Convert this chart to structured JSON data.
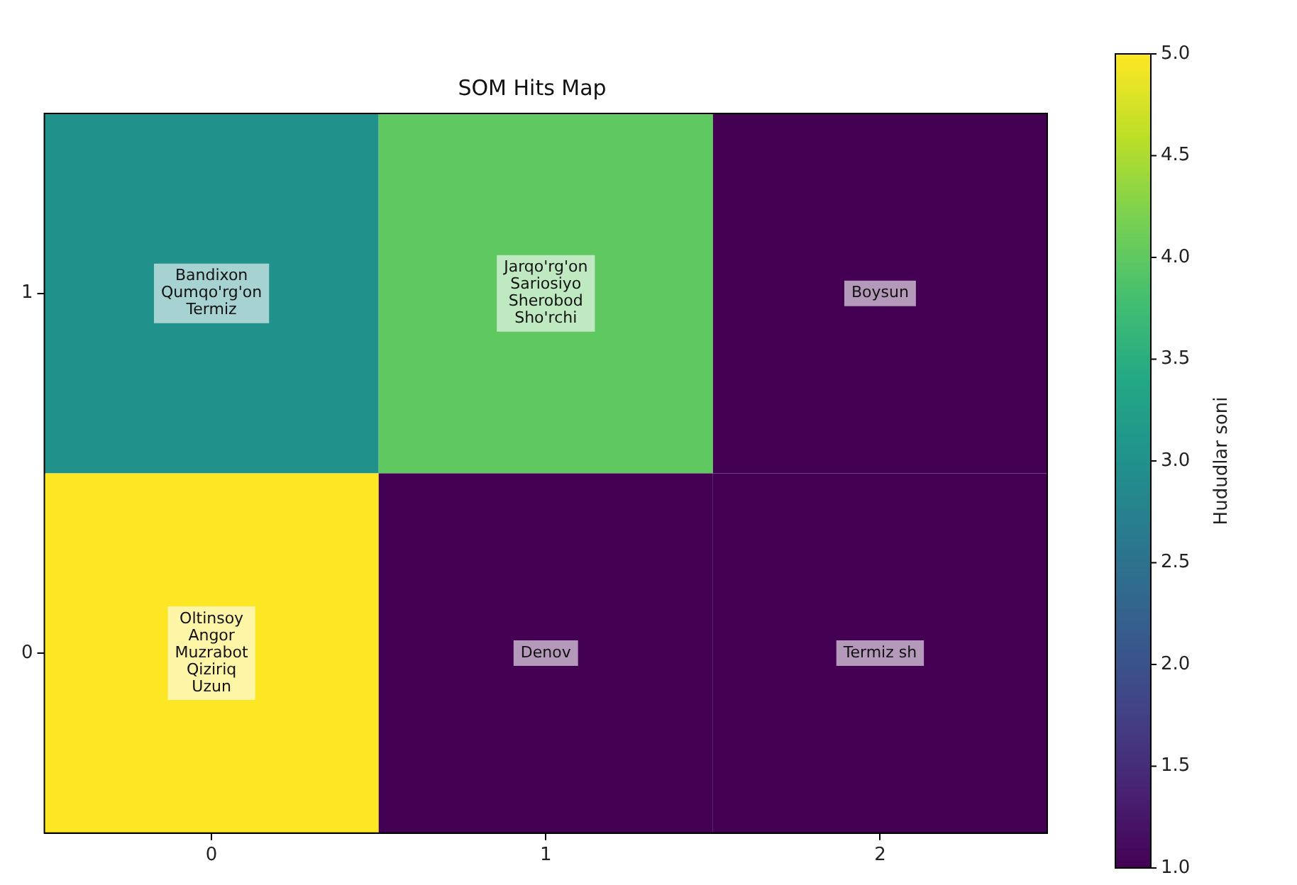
{
  "chart_data": {
    "type": "heatmap",
    "title": "SOM Hits Map",
    "categories": [
      "0",
      "1",
      "2"
    ],
    "y_categories": [
      "1",
      "0"
    ],
    "cells": [
      [
        3,
        4,
        1
      ],
      [
        5,
        1,
        1
      ]
    ],
    "cell_labels": [
      [
        "Bandixon\nQumqo'rg'on\nTermiz",
        "Jarqo'rg'on\nSariosiyo\nSherobod\nSho'rchi",
        "Boysun"
      ],
      [
        "Oltinsoy\nAngor\nMuzrabot\nQiziriq\nUzun",
        "Denov",
        "Termiz sh"
      ]
    ],
    "clabel": "Hududlar soni",
    "clim": [
      1,
      5
    ],
    "cticks": [
      {
        "value": 1,
        "label": "1.0"
      },
      1.5,
      {
        "value": 2,
        "label": "2.0"
      },
      2.5,
      {
        "value": 3,
        "label": "3.0"
      },
      3.5,
      {
        "value": 4,
        "label": "4.0"
      },
      4.5,
      {
        "value": 5,
        "label": "5.0"
      }
    ]
  }
}
